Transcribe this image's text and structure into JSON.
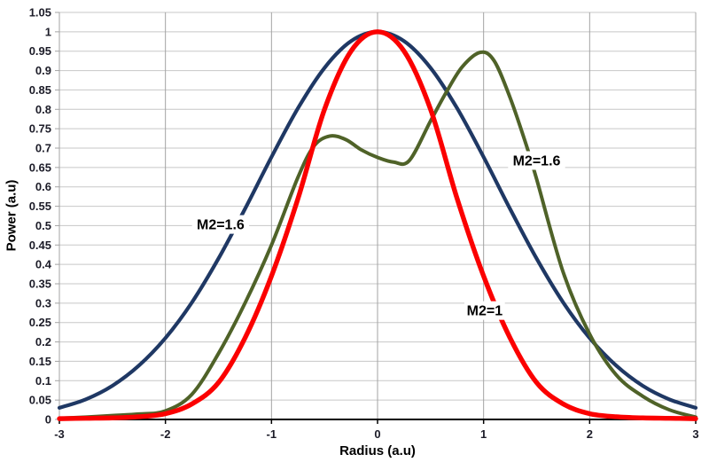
{
  "chart_data": {
    "type": "line",
    "title": "",
    "xlabel": "Radius (a.u)",
    "ylabel": "Power (a.u)",
    "xlim": [
      -3,
      3
    ],
    "ylim": [
      0,
      1.05
    ],
    "x_ticks": [
      -3,
      -2,
      -1,
      0,
      1,
      2,
      3
    ],
    "y_tick_step": 0.05,
    "grid": true,
    "legend_position": "none",
    "series": [
      {
        "name": "M2=1.6",
        "color": "#1F3864",
        "line_width": 4.2,
        "x": [
          -3,
          -2.75,
          -2.5,
          -2.25,
          -2,
          -1.75,
          -1.5,
          -1.25,
          -1,
          -0.75,
          -0.5,
          -0.25,
          0,
          0.25,
          0.5,
          0.75,
          1,
          1.25,
          1.5,
          1.75,
          2,
          2.25,
          2.5,
          2.75,
          3
        ],
        "y": [
          0.03,
          0.052,
          0.087,
          0.139,
          0.21,
          0.302,
          0.415,
          0.543,
          0.677,
          0.803,
          0.907,
          0.976,
          1.0,
          0.976,
          0.907,
          0.803,
          0.677,
          0.543,
          0.415,
          0.302,
          0.21,
          0.139,
          0.087,
          0.052,
          0.03
        ]
      },
      {
        "name": "M2=1.6",
        "color": "#4F6228",
        "line_width": 4.0,
        "x": [
          -3,
          -2.75,
          -2.5,
          -2.25,
          -2,
          -1.75,
          -1.5,
          -1.25,
          -1,
          -0.75,
          -0.6,
          -0.45,
          -0.3,
          -0.15,
          0,
          0.15,
          0.3,
          0.5,
          0.65,
          0.8,
          0.97,
          1.1,
          1.25,
          1.4,
          1.5,
          1.75,
          2,
          2.25,
          2.5,
          2.75,
          3
        ],
        "y": [
          0.003,
          0.006,
          0.01,
          0.014,
          0.022,
          0.065,
          0.17,
          0.3,
          0.45,
          0.625,
          0.705,
          0.731,
          0.722,
          0.695,
          0.676,
          0.664,
          0.668,
          0.77,
          0.845,
          0.91,
          0.947,
          0.925,
          0.83,
          0.71,
          0.62,
          0.38,
          0.22,
          0.115,
          0.06,
          0.025,
          0.006
        ]
      },
      {
        "name": "M2=1",
        "color": "#FB0000",
        "line_width": 5.4,
        "x": [
          -3,
          -2.75,
          -2.5,
          -2.25,
          -2,
          -1.75,
          -1.5,
          -1.25,
          -1,
          -0.75,
          -0.5,
          -0.25,
          0,
          0.25,
          0.5,
          0.75,
          1,
          1.25,
          1.5,
          1.75,
          2,
          2.25,
          2.5,
          2.75,
          3
        ],
        "y": [
          0.002,
          0.003,
          0.004,
          0.007,
          0.015,
          0.04,
          0.095,
          0.21,
          0.37,
          0.57,
          0.8,
          0.95,
          1.0,
          0.95,
          0.8,
          0.57,
          0.37,
          0.21,
          0.095,
          0.04,
          0.015,
          0.007,
          0.004,
          0.003,
          0.002
        ]
      }
    ],
    "annotations": [
      {
        "text": "M2=1.6",
        "x": -1.48,
        "y": 0.503
      },
      {
        "text": "M2=1",
        "x": 1.01,
        "y": 0.281
      },
      {
        "text": "M2=1.6",
        "x": 1.5,
        "y": 0.668
      }
    ]
  },
  "style": {
    "background": "#ffffff",
    "grid_color_h": "#c7c7c7",
    "grid_color_v": "#a3a3a3",
    "axis_color": "#000000",
    "tick_label_color": "#1c1c28",
    "annotation_color": "#000000"
  }
}
